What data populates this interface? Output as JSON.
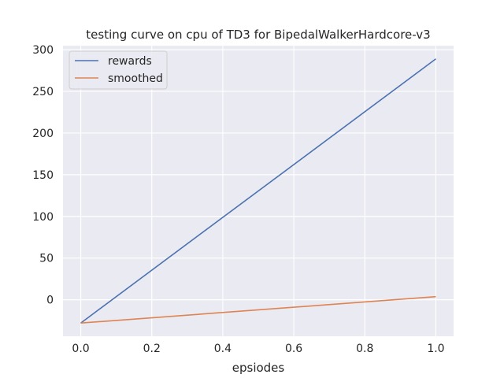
{
  "chart_data": {
    "type": "line",
    "title": "testing curve on cpu of TD3 for BipedalWalkerHardcore-v3",
    "xlabel": "epsiodes",
    "ylabel": "",
    "x": [
      0,
      1
    ],
    "series": [
      {
        "name": "rewards",
        "values": [
          -28,
          289
        ],
        "color": "#4c72b0"
      },
      {
        "name": "smoothed",
        "values": [
          -28,
          3.7
        ],
        "color": "#dd8452"
      }
    ],
    "xlim": [
      -0.05,
      1.05
    ],
    "ylim": [
      -43.85,
      304.85
    ],
    "xticks": [
      0.0,
      0.2,
      0.4,
      0.6,
      0.8,
      1.0
    ],
    "xtick_labels": [
      "0.0",
      "0.2",
      "0.4",
      "0.6",
      "0.8",
      "1.0"
    ],
    "yticks": [
      0,
      50,
      100,
      150,
      200,
      250,
      300
    ],
    "ytick_labels": [
      "0",
      "50",
      "100",
      "150",
      "200",
      "250",
      "300"
    ],
    "grid": true,
    "legend_position": "top-left",
    "background_color": "#eaeaf2",
    "grid_color": "#ffffff"
  }
}
